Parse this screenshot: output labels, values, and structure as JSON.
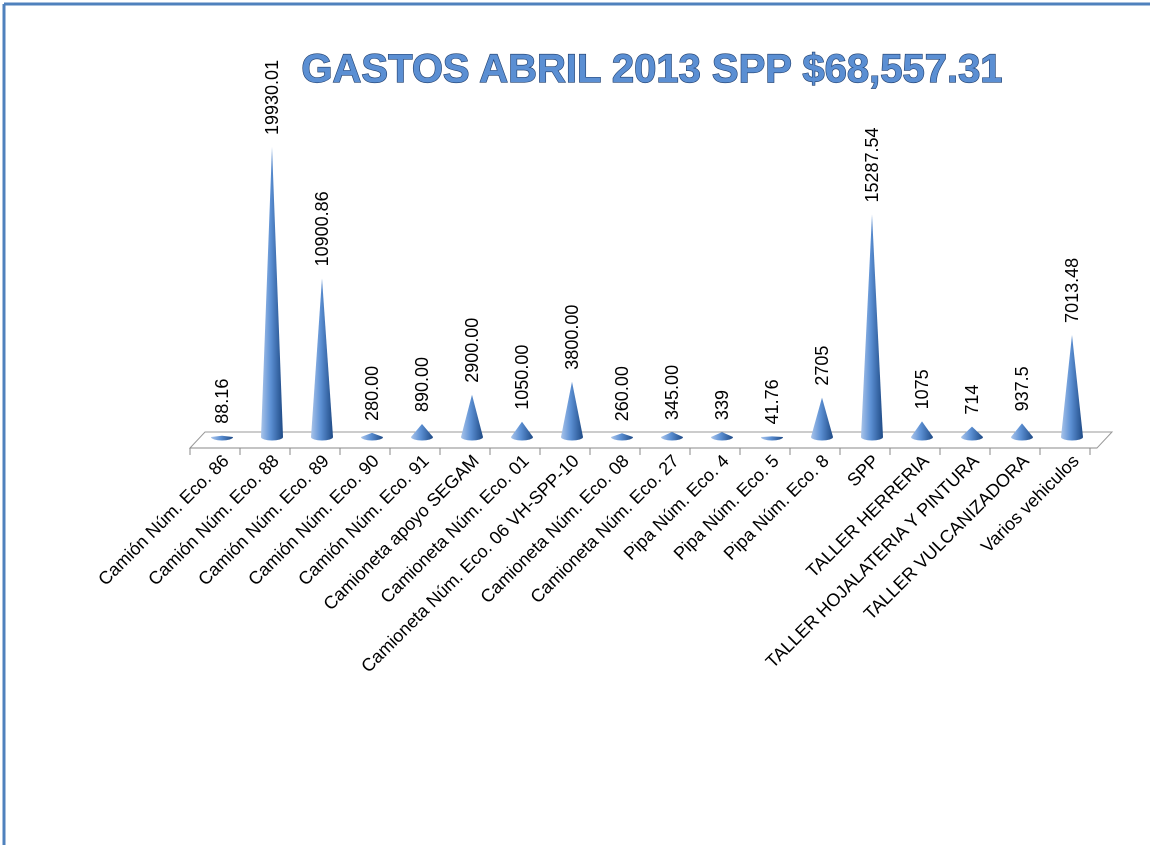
{
  "chart_data": {
    "type": "cone",
    "title": "GASTOS ABRIL 2013 SPP $68,557.31",
    "categories": [
      "Camión Núm. Eco. 86",
      "Camión Núm. Eco. 88",
      "Camión Núm. Eco. 89",
      "Camión Núm. Eco. 90",
      "Camión Núm. Eco. 91",
      "Camioneta apoyo SEGAM",
      "Camioneta Núm. Eco. 01",
      "Camioneta Núm. Eco. 06 VH-SPP-10",
      "Camioneta Núm. Eco. 08",
      "Camioneta Núm. Eco. 27",
      "Pipa Núm. Eco. 4",
      "Pipa Núm. Eco. 5",
      "Pipa Núm. Eco. 8",
      "SPP",
      "TALLER HERRERIA",
      "TALLER HOJALATERIA Y PINTURA",
      "TALLER VULCANIZADORA",
      "Varios vehiculos"
    ],
    "values": [
      88.16,
      19930.01,
      10900.86,
      280,
      890,
      2900,
      1050,
      3800,
      260,
      345,
      339,
      41.76,
      2705,
      15287.54,
      1075,
      714,
      937.5,
      7013.48
    ],
    "value_labels": [
      "88.16",
      "19930.01",
      "10900.86",
      "280.00",
      "890.00",
      "2900.00",
      "1050.00",
      "3800.00",
      "260.00",
      "345.00",
      "339",
      "41.76",
      "2705",
      "15287.54",
      "1075",
      "714",
      "937.5",
      "7013.48"
    ],
    "color": "#4f81bd"
  }
}
